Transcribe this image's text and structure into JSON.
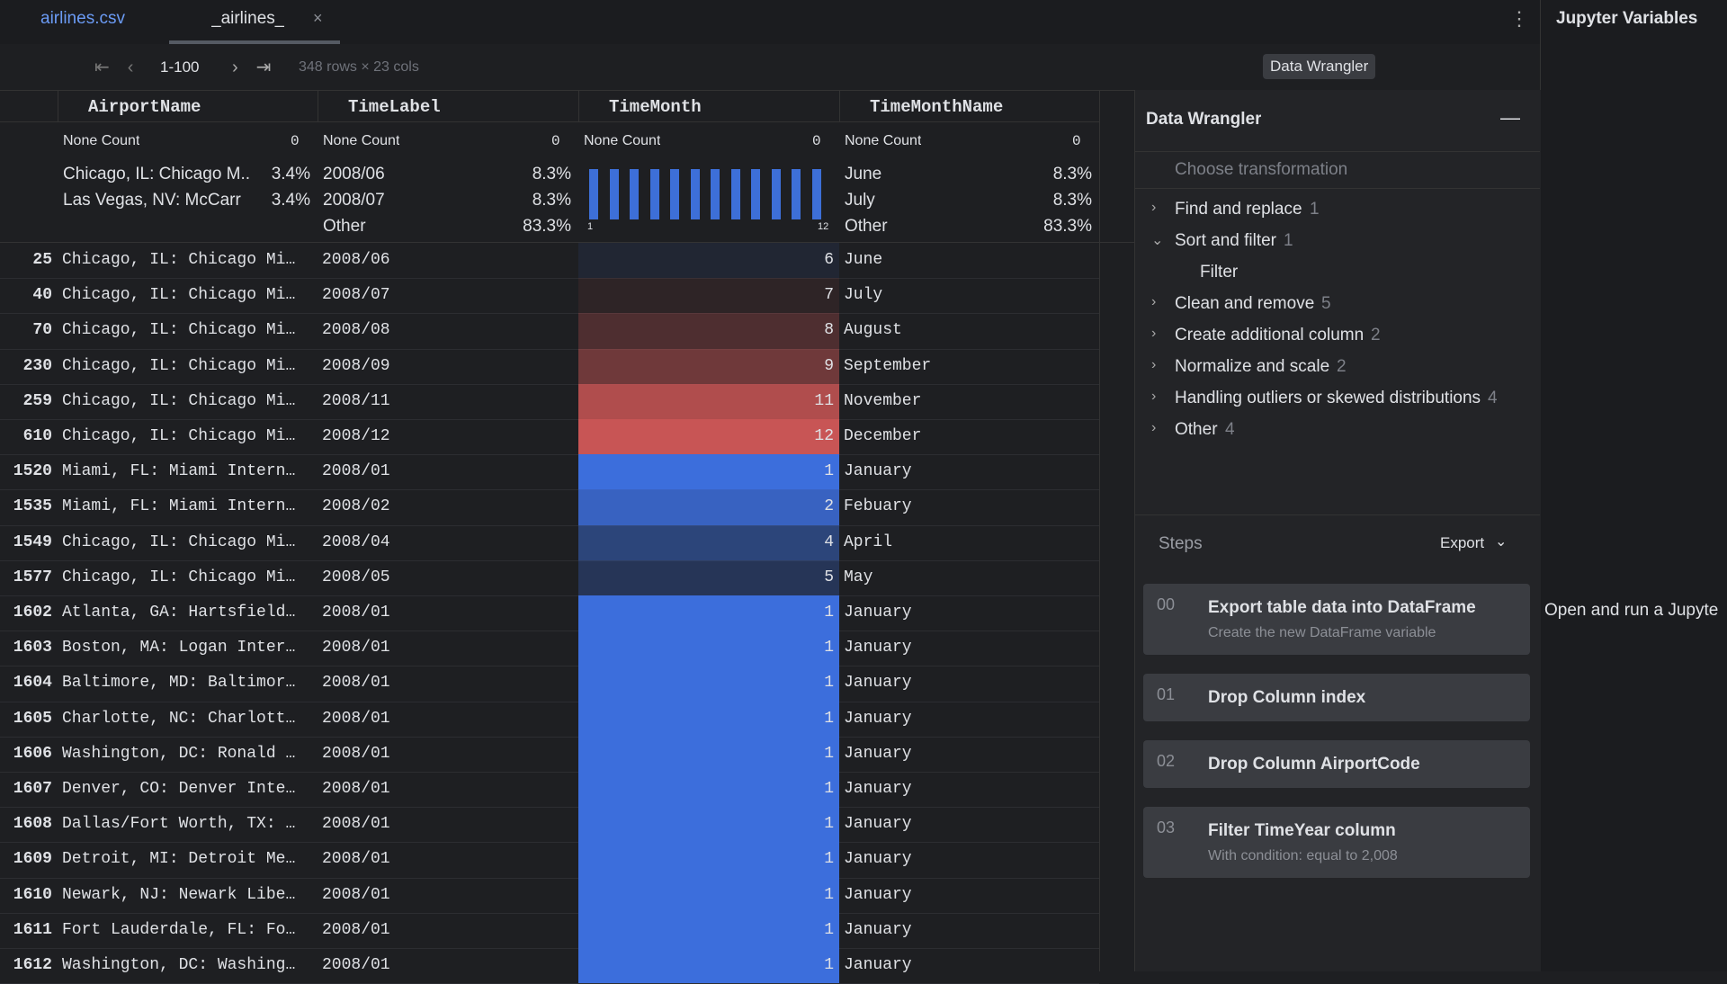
{
  "tabs": [
    "airlines.csv",
    "_airlines_"
  ],
  "sidebar": {
    "title": "Jupyter Variables",
    "message": "Open and run a Jupyte"
  },
  "toolbar": {
    "page_range": "1-100",
    "shape": "348 rows × 23 cols",
    "wrangler_button": "Data Wrangler"
  },
  "table": {
    "columns": [
      {
        "name": "AirportName",
        "none_label": "None Count",
        "none_count": 0,
        "top": [
          {
            "label": "Chicago, IL: Chicago M...",
            "pct": "3.4%"
          },
          {
            "label": "Las Vegas, NV: McCarr",
            "pct": "3.4%"
          }
        ]
      },
      {
        "name": "TimeLabel",
        "none_label": "None Count",
        "none_count": 0,
        "top": [
          {
            "label": "2008/06",
            "pct": "8.3%"
          },
          {
            "label": "2008/07",
            "pct": "8.3%"
          },
          {
            "label": "Other",
            "pct": "83.3%"
          }
        ]
      },
      {
        "name": "TimeMonth",
        "none_label": "None Count",
        "none_count": 0,
        "histogram": {
          "min": 1,
          "max": 12,
          "counts": [
            29,
            29,
            29,
            29,
            29,
            29,
            29,
            29,
            29,
            29,
            29,
            29
          ]
        }
      },
      {
        "name": "TimeMonthName",
        "none_label": "None Count",
        "none_count": 0,
        "top": [
          {
            "label": "June",
            "pct": "8.3%"
          },
          {
            "label": "July",
            "pct": "8.3%"
          },
          {
            "label": "Other",
            "pct": "83.3%"
          }
        ]
      }
    ],
    "rows": [
      [
        25,
        "Chicago, IL: Chicago Mi…",
        "2008/06",
        6,
        "June"
      ],
      [
        40,
        "Chicago, IL: Chicago Mi…",
        "2008/07",
        7,
        "July"
      ],
      [
        70,
        "Chicago, IL: Chicago Mi…",
        "2008/08",
        8,
        "August"
      ],
      [
        230,
        "Chicago, IL: Chicago Mi…",
        "2008/09",
        9,
        "September"
      ],
      [
        259,
        "Chicago, IL: Chicago Mi…",
        "2008/11",
        11,
        "November"
      ],
      [
        610,
        "Chicago, IL: Chicago Mi…",
        "2008/12",
        12,
        "December"
      ],
      [
        1520,
        "Miami, FL: Miami Intern…",
        "2008/01",
        1,
        "January"
      ],
      [
        1535,
        "Miami, FL: Miami Intern…",
        "2008/02",
        2,
        "Febuary"
      ],
      [
        1549,
        "Chicago, IL: Chicago Mi…",
        "2008/04",
        4,
        "April"
      ],
      [
        1577,
        "Chicago, IL: Chicago Mi…",
        "2008/05",
        5,
        "May"
      ],
      [
        1602,
        "Atlanta, GA: Hartsfield…",
        "2008/01",
        1,
        "January"
      ],
      [
        1603,
        "Boston, MA: Logan Inter…",
        "2008/01",
        1,
        "January"
      ],
      [
        1604,
        "Baltimore, MD: Baltimor…",
        "2008/01",
        1,
        "January"
      ],
      [
        1605,
        "Charlotte, NC: Charlott…",
        "2008/01",
        1,
        "January"
      ],
      [
        1606,
        "Washington, DC: Ronald …",
        "2008/01",
        1,
        "January"
      ],
      [
        1607,
        "Denver, CO: Denver Inte…",
        "2008/01",
        1,
        "January"
      ],
      [
        1608,
        "Dallas/Fort Worth, TX: …",
        "2008/01",
        1,
        "January"
      ],
      [
        1609,
        "Detroit, MI: Detroit Me…",
        "2008/01",
        1,
        "January"
      ],
      [
        1610,
        "Newark, NJ: Newark Libe…",
        "2008/01",
        1,
        "January"
      ],
      [
        1611,
        "Fort Lauderdale, FL: Fo…",
        "2008/01",
        1,
        "January"
      ],
      [
        1612,
        "Washington, DC: Washing…",
        "2008/01",
        1,
        "January"
      ]
    ]
  },
  "wrangler": {
    "title": "Data Wrangler",
    "search_placeholder": "Choose transformation",
    "groups": [
      {
        "label": "Find and replace",
        "count": 1
      },
      {
        "label": "Sort and filter",
        "count": 1,
        "children": [
          "Filter"
        ]
      },
      {
        "label": "Clean and remove",
        "count": 5
      },
      {
        "label": "Create additional column",
        "count": 2
      },
      {
        "label": "Normalize and scale",
        "count": 2
      },
      {
        "label": "Handling outliers or skewed distributions",
        "count": 4
      },
      {
        "label": "Other",
        "count": 4
      }
    ],
    "steps_title": "Steps",
    "export": "Export",
    "steps": [
      {
        "num": "00",
        "title": "Export table data into DataFrame",
        "detail": "Create the new DataFrame variable"
      },
      {
        "num": "01",
        "title": "Drop Column index"
      },
      {
        "num": "02",
        "title": "Drop Column AirportCode"
      },
      {
        "num": "03",
        "title": "Filter TimeYear column",
        "detail": "With condition: equal to 2,008"
      }
    ]
  }
}
